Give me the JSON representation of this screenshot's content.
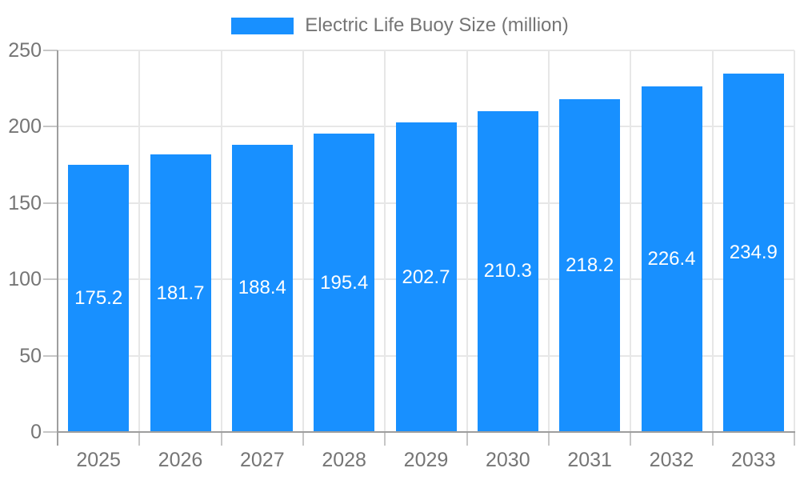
{
  "legend": {
    "items": [
      {
        "label": "Electric Life Buoy Size (million)",
        "swatch_color": "#1890FF"
      }
    ]
  },
  "chart_data": {
    "type": "bar",
    "title": "Electric Life Buoy Size (million)",
    "series_name": "Electric Life Buoy Size (million)",
    "categories": [
      "2025",
      "2026",
      "2027",
      "2028",
      "2029",
      "2030",
      "2031",
      "2032",
      "2033"
    ],
    "values": [
      175.2,
      181.7,
      188.4,
      195.4,
      202.7,
      210.3,
      218.2,
      226.4,
      234.9
    ],
    "value_labels": [
      "175.2",
      "181.7",
      "188.4",
      "195.4",
      "202.7",
      "210.3",
      "218.2",
      "226.4",
      "234.9"
    ],
    "xlabel": "",
    "ylabel": "",
    "ylim": [
      0,
      250
    ],
    "yticks": [
      0,
      50,
      100,
      150,
      200,
      250
    ],
    "grid": true,
    "legend_position": "top",
    "value_labels_visible": true,
    "colors": {
      "bar": "#1890FF",
      "value_label_text": "#FFFFFF",
      "axis_text": "#757575",
      "axis_line": "#9E9E9E",
      "grid_line": "#E7E7E7",
      "tick_line": "#C6C6C6",
      "background": "#FFFFFF"
    }
  }
}
